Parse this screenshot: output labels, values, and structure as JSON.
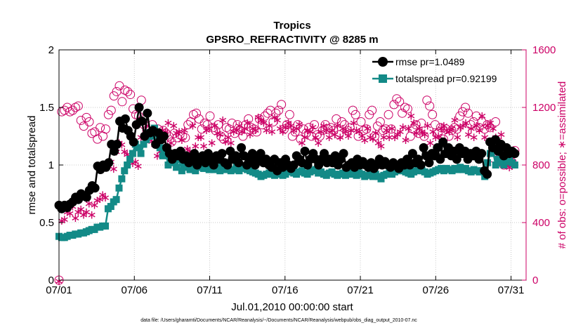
{
  "chart_data": {
    "type": "line",
    "title": "Tropics",
    "subtitle": "GPSRO_REFRACTIVITY @ 8285 m",
    "xlabel": "Jul.01,2010 00:00:00 start",
    "ylabel": "rmse and totalspread",
    "ylabel_right": "# of obs: o=possible; ∗=assimilated",
    "footer": "data file: /Users/gharamti/Documents/NCAR/Reanalysis/~/Documents/NCAR/Reanalysis/webpub/obs_diag_output_2010-07.nc",
    "xlim": [
      1,
      32
    ],
    "ylim": [
      0,
      2
    ],
    "ylim_right": [
      0,
      1600
    ],
    "x_ticks": [
      1,
      6,
      11,
      16,
      21,
      26,
      31
    ],
    "x_tick_labels": [
      "07/01",
      "07/06",
      "07/11",
      "07/16",
      "07/21",
      "07/26",
      "07/31"
    ],
    "y_ticks": [
      0,
      0.5,
      1,
      1.5,
      2
    ],
    "y_tick_labels": [
      "0",
      "0.5",
      "1",
      "1.5",
      "2"
    ],
    "y_ticks_right": [
      0,
      400,
      800,
      1200,
      1600
    ],
    "y_tick_labels_right": [
      "0",
      "400",
      "800",
      "1200",
      "1600"
    ],
    "grid": true,
    "legend_position": "top-right",
    "colors": {
      "rmse": "#000000",
      "spread": "#138a87",
      "obs": "#cc0066"
    },
    "series": [
      {
        "name": "rmse pr=1.0489",
        "values": [
          0.65,
          0.62,
          0.65,
          0.63,
          0.66,
          0.68,
          0.72,
          0.7,
          0.75,
          0.73,
          0.72,
          0.78,
          0.82,
          0.8,
          0.99,
          0.96,
          1.0,
          0.98,
          1.02,
          1.18,
          1.12,
          1.18,
          1.38,
          1.32,
          1.4,
          1.3,
          1.25,
          1.2,
          1.35,
          1.5,
          1.38,
          1.25,
          1.45,
          1.28,
          1.3,
          1.18,
          1.28,
          1.22,
          1.25,
          1.15,
          1.1,
          1.05,
          1.1,
          1.08,
          1.12,
          1.05,
          1.08,
          1.02,
          1.05,
          1.1,
          1.0,
          1.05,
          1.08,
          1.02,
          1.1,
          1.06,
          1.0,
          1.08,
          1.05,
          1.1,
          1.02,
          1.0,
          1.12,
          1.05,
          1.08,
          1.02,
          1.15,
          1.08,
          1.0,
          1.05,
          1.1,
          1.0,
          1.05,
          1.1,
          1.02,
          1.05,
          1.0,
          0.98,
          1.05,
          0.95,
          1.02,
          0.98,
          1.05,
          1.0,
          0.97,
          1.0,
          1.08,
          1.05,
          1.02,
          1.12,
          1.0,
          1.05,
          1.1,
          1.05,
          1.0,
          1.05,
          1.1,
          1.02,
          1.05,
          1.02,
          1.08,
          1.0,
          1.05,
          1.1,
          0.98,
          1.0,
          1.02,
          0.98,
          1.05,
          1.0,
          1.03,
          1.0,
          0.98,
          1.02,
          0.97,
          1.0,
          1.05,
          1.0,
          1.03,
          1.0,
          0.98,
          1.02,
          1.0,
          0.97,
          1.02,
          1.0,
          1.05,
          1.0,
          1.1,
          1.02,
          1.05,
          1.0,
          1.15,
          1.08,
          1.02,
          1.1,
          1.08,
          1.15,
          1.05,
          1.2,
          1.1,
          1.15,
          1.08,
          1.12,
          1.05,
          1.15,
          1.1,
          1.12,
          1.05,
          1.1,
          1.08,
          1.12,
          1.05,
          1.1,
          0.95,
          0.92,
          1.2,
          1.15,
          1.22,
          1.12,
          1.18,
          1.08,
          1.15,
          1.1,
          1.12,
          1.1
        ]
      },
      {
        "name": "totalspread pr=0.92199",
        "values": [
          0.38,
          0.37,
          0.37,
          0.38,
          0.39,
          0.39,
          0.4,
          0.4,
          0.41,
          0.41,
          0.42,
          0.43,
          0.44,
          0.44,
          0.46,
          0.46,
          0.47,
          0.47,
          0.62,
          0.64,
          0.68,
          0.7,
          0.8,
          0.88,
          0.95,
          1.0,
          1.05,
          1.1,
          1.18,
          1.15,
          1.1,
          1.18,
          1.22,
          1.28,
          1.25,
          1.32,
          1.2,
          1.15,
          1.08,
          1.12,
          1.0,
          1.05,
          1.02,
          0.98,
          1.05,
          0.95,
          1.0,
          0.98,
          0.96,
          0.99,
          0.95,
          1.0,
          0.98,
          0.97,
          0.98,
          0.96,
          0.99,
          0.96,
          0.98,
          0.95,
          0.99,
          0.96,
          0.97,
          0.95,
          0.96,
          0.99,
          0.95,
          0.97,
          0.98,
          0.96,
          0.95,
          0.94,
          0.93,
          0.92,
          0.9,
          0.91,
          0.92,
          0.93,
          0.92,
          0.91,
          0.92,
          0.93,
          0.91,
          0.92,
          0.94,
          0.95,
          0.93,
          0.92,
          0.94,
          0.95,
          0.93,
          0.92,
          0.94,
          0.95,
          0.96,
          0.93,
          0.94,
          0.92,
          0.91,
          0.93,
          0.94,
          0.92,
          0.91,
          0.92,
          0.93,
          0.91,
          0.92,
          0.93,
          0.92,
          0.91,
          0.93,
          0.92,
          0.9,
          0.91,
          0.92,
          0.9,
          0.92,
          0.9,
          0.88,
          0.91,
          0.92,
          0.93,
          0.92,
          0.94,
          0.95,
          0.96,
          0.95,
          0.94,
          0.93,
          0.92,
          0.94,
          0.95,
          0.96,
          0.95,
          0.94,
          0.92,
          0.93,
          0.94,
          0.95,
          0.96,
          0.97,
          0.95,
          0.97,
          0.96,
          0.95,
          0.97,
          0.96,
          0.98,
          0.96,
          0.97,
          0.95,
          0.94,
          0.96,
          0.95,
          0.94,
          0.95,
          0.9,
          1.02,
          1.1,
          1.12,
          1.0,
          1.05,
          1.02,
          1.0,
          1.03,
          1.05,
          1.02,
          1.0
        ]
      },
      {
        "name": "possible",
        "values": [
          0,
          1170,
          1180,
          1200,
          1170,
          1180,
          1200,
          1210,
          1110,
          1070,
          1130,
          1100,
          1020,
          1030,
          980,
          1060,
          1000,
          1050,
          1150,
          1180,
          1280,
          1310,
          1350,
          1240,
          1320,
          1310,
          1290,
          1190,
          1150,
          1140,
          1250,
          1080,
          1040,
          1000,
          1080,
          980,
          1050,
          990,
          1040,
          1020,
          1000,
          960,
          1020,
          990,
          1010,
          1000,
          990,
          1080,
          1100,
          1150,
          1160,
          1120,
          1050,
          1090,
          1080,
          1140,
          1060,
          1040,
          1080,
          1000,
          980,
          1060,
          1050,
          1090,
          1020,
          1080,
          1040,
          1000,
          1080,
          1120,
          1060,
          1050,
          1030,
          1120,
          1080,
          1140,
          1160,
          1180,
          1100,
          1160,
          1180,
          1220,
          1050,
          1080,
          1150,
          1000,
          1030,
          1080,
          980,
          1050,
          1020,
          1060,
          1000,
          1080,
          1010,
          1000,
          1040,
          1080,
          1050,
          1060,
          1040,
          1120,
          1010,
          1100,
          1080,
          1040,
          1060,
          1180,
          1150,
          1000,
          1100,
          1040,
          1050,
          1150,
          1180,
          1000,
          1070,
          1100,
          1040,
          1050,
          1150,
          1050,
          1220,
          1260,
          1240,
          1160,
          1200,
          1190,
          1000,
          1050,
          1080,
          1020,
          1090,
          1000,
          1250,
          1210,
          1150,
          1080,
          1020,
          1060,
          980,
          1050,
          1000,
          1040,
          1060,
          1050,
          1140,
          1170,
          1200,
          1160,
          1080,
          1100,
          1140,
          1060,
          1100,
          1050,
          1080,
          1060,
          850,
          1100,
          880,
          840,
          800,
          870,
          830,
          820,
          900
        ]
      },
      {
        "name": "assimilated",
        "values": [
          0,
          420,
          430,
          480,
          470,
          520,
          440,
          480,
          500,
          460,
          480,
          540,
          460,
          530,
          560,
          570,
          600,
          580,
          800,
          830,
          780,
          900,
          960,
          950,
          900,
          880,
          860,
          820,
          830,
          800,
          1000,
          960,
          1080,
          1030,
          970,
          950,
          870,
          900,
          1050,
          1040,
          1100,
          960,
          1080,
          1030,
          1040,
          980,
          1050,
          920,
          900,
          1080,
          940,
          1000,
          1000,
          940,
          1050,
          1060,
          960,
          1080,
          1030,
          1020,
          1120,
          970,
          1000,
          960,
          1040,
          1050,
          1080,
          1040,
          1060,
          1100,
          1020,
          1060,
          1050,
          1140,
          1120,
          1100,
          1050,
          1080,
          1040,
          1140,
          1120,
          1060,
          1040,
          1070,
          1100,
          1080,
          1050,
          1060,
          1090,
          960,
          1000,
          1050,
          1040,
          1070,
          1000,
          960,
          1040,
          1080,
          1050,
          1000,
          1050,
          1020,
          1080,
          1000,
          1060,
          1040,
          1010,
          1050,
          1100,
          1050,
          1040,
          1010,
          980,
          1060,
          1000,
          990,
          1030,
          960,
          940,
          1000,
          1050,
          1000,
          1060,
          1000,
          1020,
          1040,
          1070,
          980,
          1060,
          1150,
          1100,
          1030,
          1060,
          1040,
          1020,
          1080,
          960,
          1040,
          1000,
          1010,
          1060,
          1080,
          1050,
          1040,
          1060,
          1120,
          1000,
          1070,
          1080,
          1100,
          1020,
          1060,
          1000,
          1080,
          1050,
          1150,
          1000,
          1080,
          1100,
          1060,
          1000,
          980,
          1020,
          820,
          810,
          790,
          800,
          810
        ]
      }
    ]
  }
}
